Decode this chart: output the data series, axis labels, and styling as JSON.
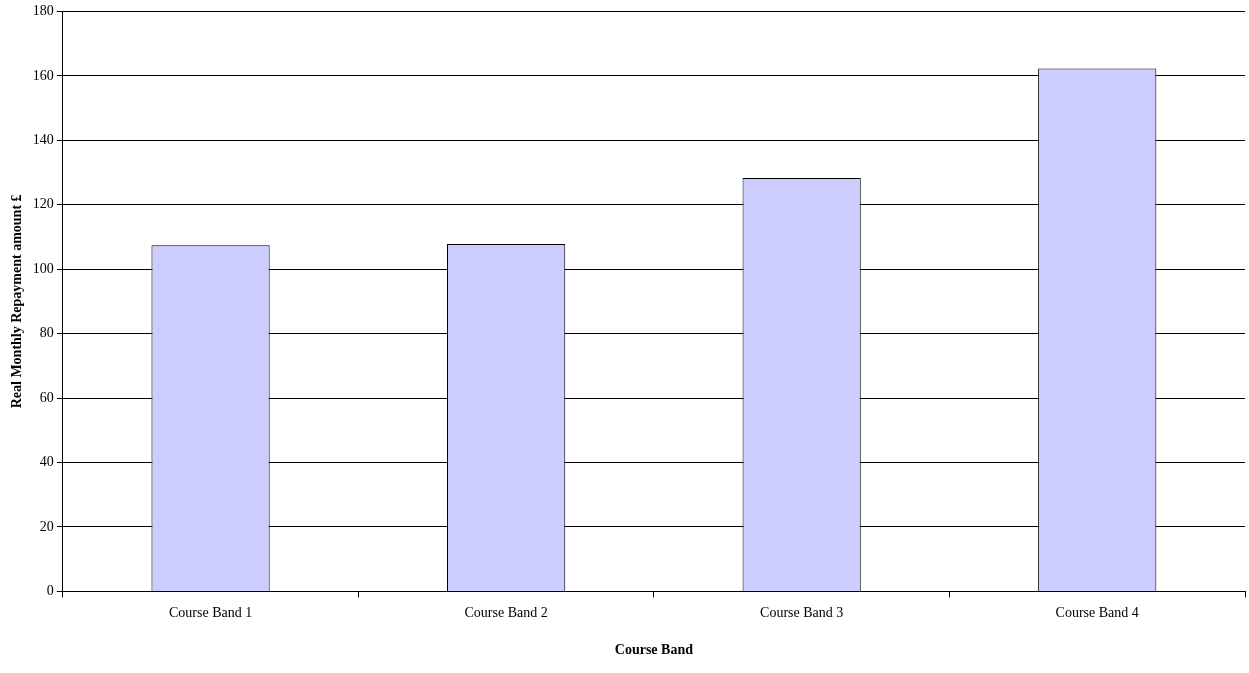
{
  "chart_data": {
    "type": "bar",
    "xlabel": "Course Band",
    "ylabel": "Real Monthly Repayment amount £",
    "categories": [
      "Course Band 1",
      "Course Band 2",
      "Course Band 3",
      "Course Band 4"
    ],
    "values": [
      107.4,
      107.8,
      128.3,
      162.3
    ],
    "color": "#ccccff",
    "ylim": [
      0,
      180
    ],
    "yticks": [
      0,
      20,
      40,
      60,
      80,
      100,
      120,
      140,
      160,
      180
    ],
    "grid": "y",
    "legend": false
  }
}
